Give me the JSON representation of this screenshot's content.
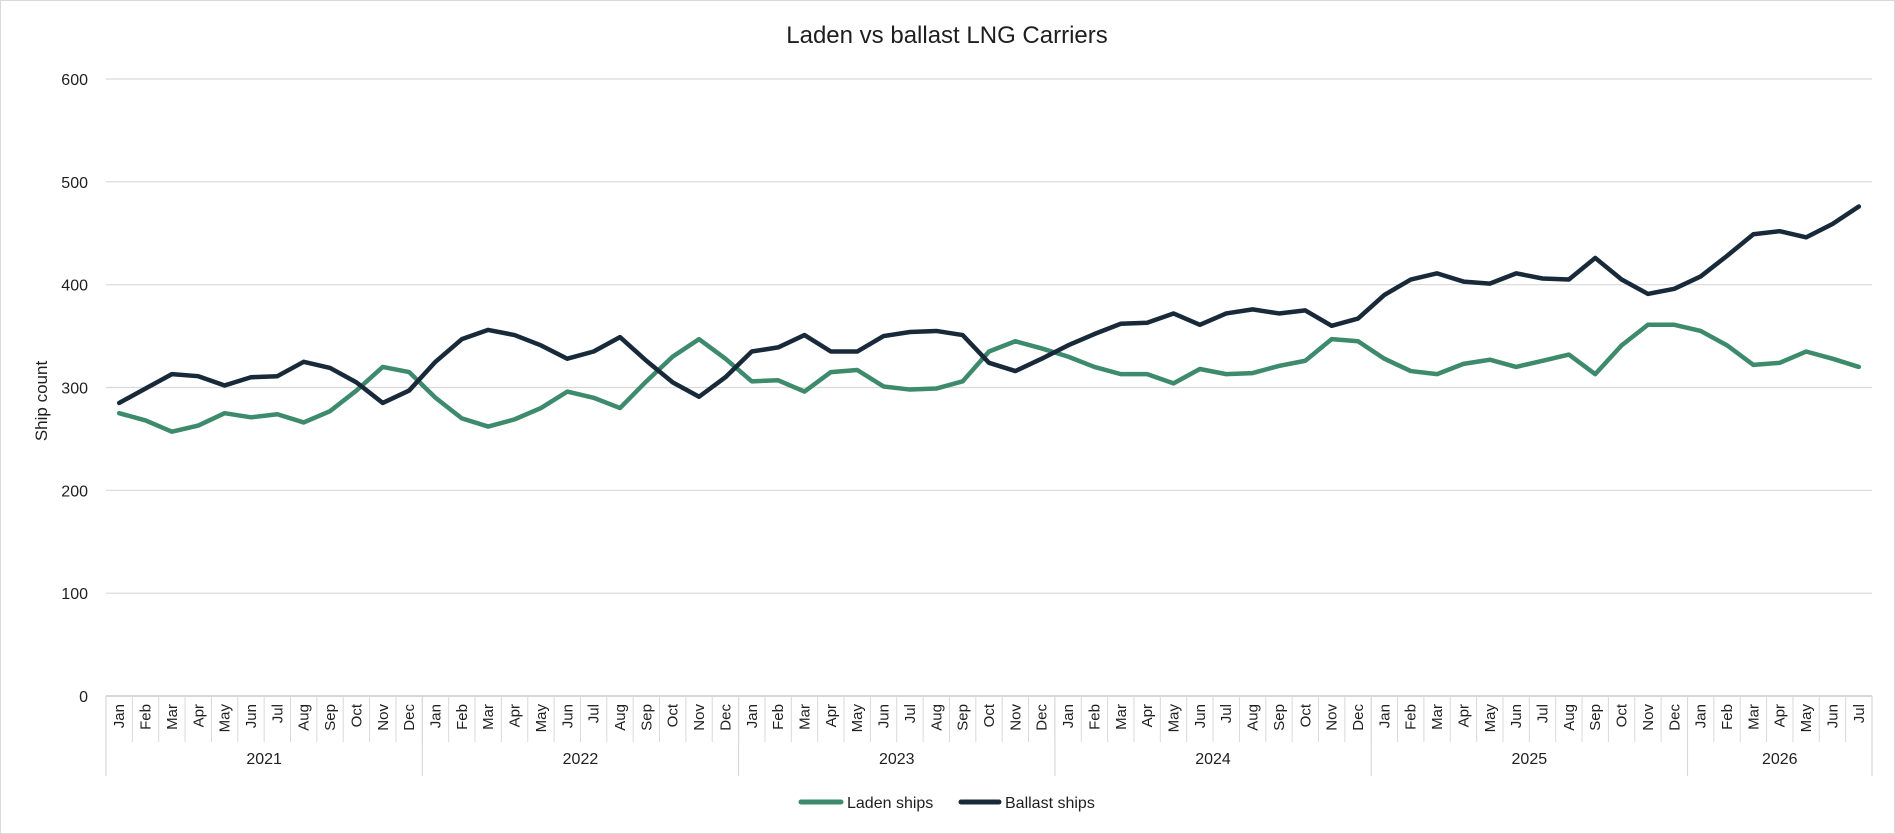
{
  "chart_data": {
    "type": "line",
    "title": "Laden vs ballast LNG Carriers",
    "ylabel": "Ship count",
    "xlabel": "",
    "ylim": [
      0,
      600
    ],
    "yticks": [
      0,
      100,
      200,
      300,
      400,
      500,
      600
    ],
    "grid": true,
    "legend_position": "bottom",
    "x": [
      "Jan",
      "Feb",
      "Mar",
      "Apr",
      "May",
      "Jun",
      "Jul",
      "Aug",
      "Sep",
      "Oct",
      "Nov",
      "Dec",
      "Jan",
      "Feb",
      "Mar",
      "Apr",
      "May",
      "Jun",
      "Jul",
      "Aug",
      "Sep",
      "Oct",
      "Nov",
      "Dec",
      "Jan",
      "Feb",
      "Mar",
      "Apr",
      "May",
      "Jun",
      "Jul",
      "Aug",
      "Sep",
      "Oct",
      "Nov",
      "Dec",
      "Jan",
      "Feb",
      "Mar",
      "Apr",
      "May",
      "Jun",
      "Jul",
      "Aug",
      "Sep",
      "Oct",
      "Nov",
      "Dec",
      "Jan",
      "Feb",
      "Mar",
      "Apr",
      "May",
      "Jun",
      "Jul",
      "Aug",
      "Sep",
      "Oct",
      "Nov",
      "Dec",
      "Jan",
      "Feb",
      "Mar",
      "Apr",
      "May",
      "Jun",
      "Jul"
    ],
    "year_groups": [
      {
        "label": "2021",
        "months": 12
      },
      {
        "label": "2022",
        "months": 12
      },
      {
        "label": "2023",
        "months": 12
      },
      {
        "label": "2024",
        "months": 12
      },
      {
        "label": "2025",
        "months": 12
      },
      {
        "label": "2026",
        "months": 7
      }
    ],
    "series": [
      {
        "name": "Laden ships",
        "color": "#3d8a6c",
        "values": [
          275,
          268,
          257,
          263,
          275,
          271,
          274,
          266,
          277,
          297,
          320,
          315,
          290,
          270,
          262,
          269,
          280,
          296,
          290,
          280,
          306,
          330,
          347,
          328,
          306,
          307,
          296,
          315,
          317,
          301,
          298,
          299,
          306,
          335,
          345,
          338,
          330,
          320,
          313,
          313,
          304,
          318,
          313,
          314,
          321,
          326,
          347,
          345,
          328,
          316,
          313,
          323,
          327,
          320,
          326,
          332,
          313,
          341,
          361,
          361,
          355,
          341,
          322,
          324,
          335,
          328,
          320
        ]
      },
      {
        "name": "Ballast ships",
        "color": "#18293a",
        "values": [
          285,
          299,
          313,
          311,
          302,
          310,
          311,
          325,
          319,
          305,
          285,
          297,
          325,
          347,
          356,
          351,
          341,
          328,
          335,
          349,
          326,
          305,
          291,
          310,
          335,
          339,
          351,
          335,
          335,
          350,
          354,
          355,
          351,
          324,
          316,
          328,
          341,
          352,
          362,
          363,
          372,
          361,
          372,
          376,
          372,
          375,
          360,
          367,
          390,
          405,
          411,
          403,
          401,
          411,
          406,
          405,
          426,
          405,
          391,
          396,
          408,
          428,
          449,
          452,
          446,
          459,
          476
        ]
      }
    ]
  }
}
